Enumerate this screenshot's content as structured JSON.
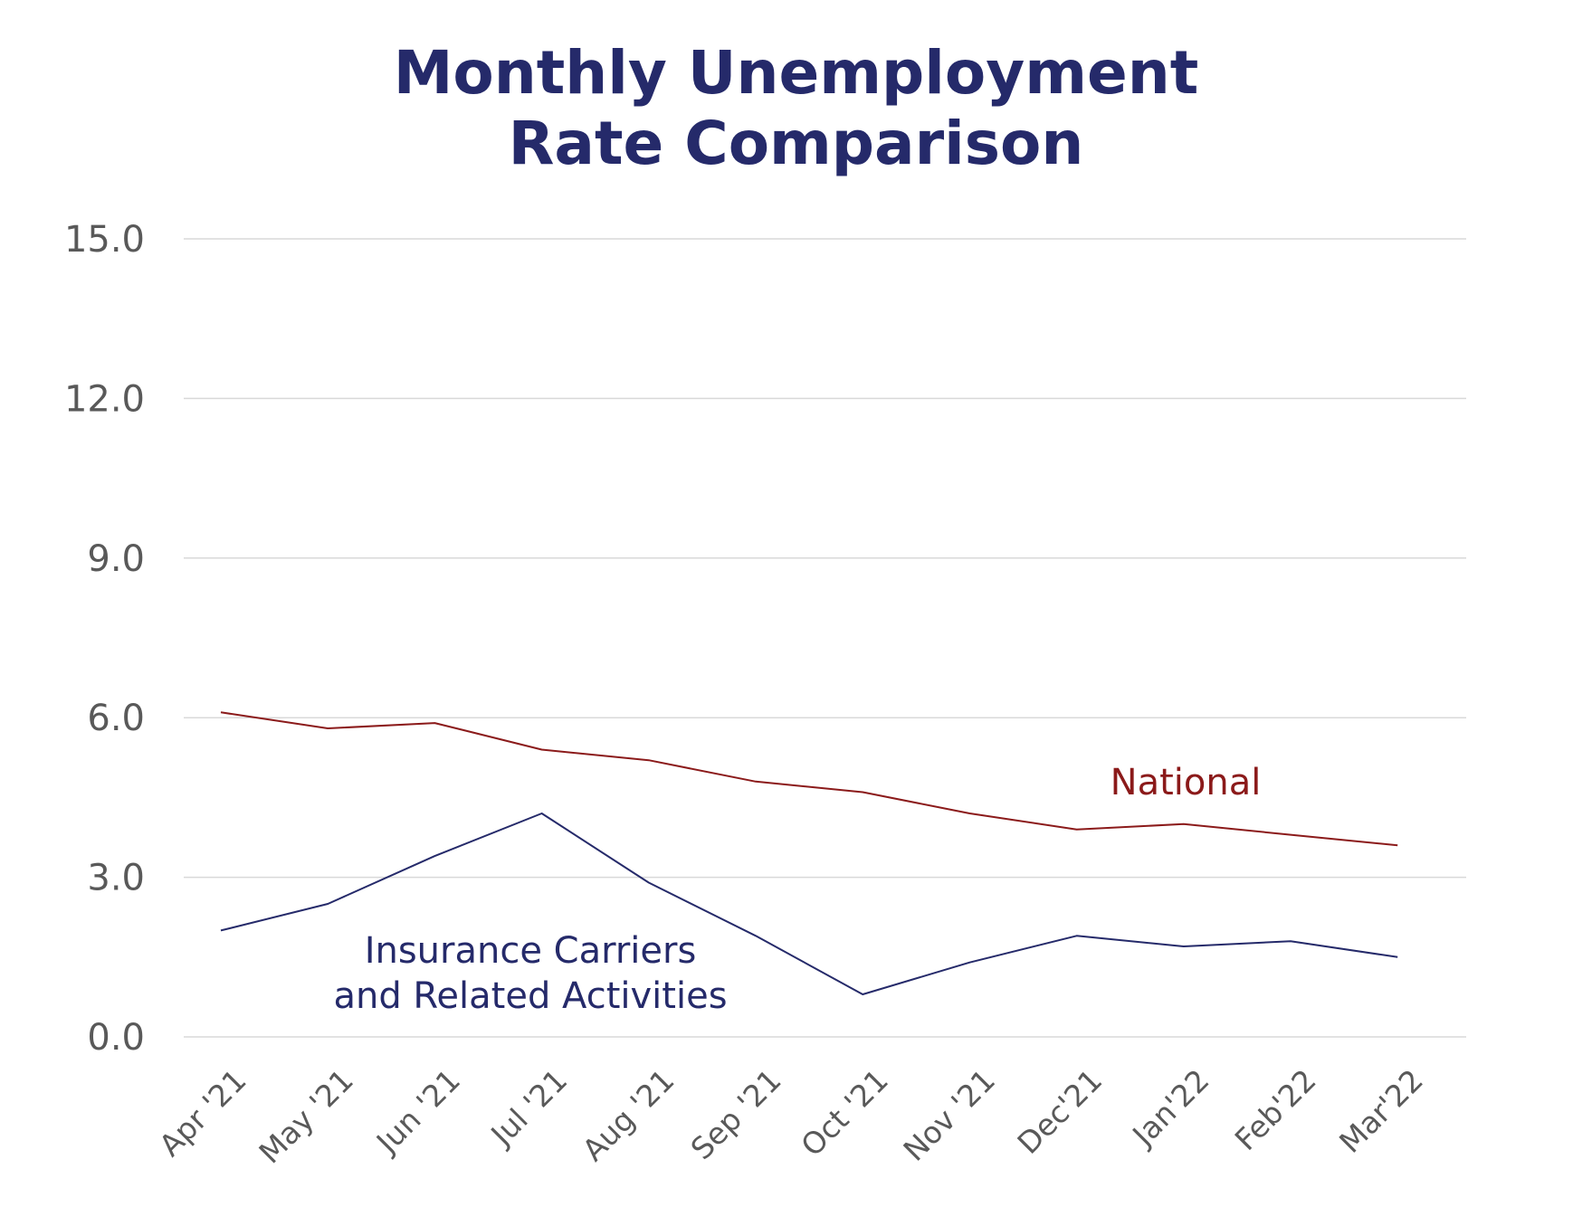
{
  "chart_data": {
    "type": "line",
    "title_lines": [
      "Monthly Unemployment",
      "Rate Comparison"
    ],
    "title": "Monthly Unemployment Rate Comparison",
    "xlabel": "",
    "ylabel": "",
    "categories": [
      "Apr '21",
      "May '21",
      "Jun '21",
      "Jul '21",
      "Aug '21",
      "Sep '21",
      "Oct '21",
      "Nov '21",
      "Dec'21",
      "Jan'22",
      "Feb'22",
      "Mar'22"
    ],
    "ylim": [
      0,
      15
    ],
    "yticks": [
      "0.0",
      "3.0",
      "6.0",
      "9.0",
      "12.0",
      "15.0"
    ],
    "grid": true,
    "series": [
      {
        "name": "National",
        "label_lines": [
          "National"
        ],
        "color": "#8b1a1a",
        "values": [
          6.1,
          5.8,
          5.9,
          5.4,
          5.2,
          4.8,
          4.6,
          4.2,
          3.9,
          4.0,
          3.8,
          3.6
        ]
      },
      {
        "name": "Insurance Carriers and Related Activities",
        "label_lines": [
          "Insurance Carriers",
          "and Related Activities"
        ],
        "color": "#252a6a",
        "values": [
          2.0,
          2.5,
          3.4,
          4.2,
          2.9,
          1.9,
          0.8,
          1.4,
          1.9,
          1.7,
          1.8,
          1.5
        ]
      }
    ]
  },
  "colors": {
    "title": "#252a6a",
    "axis_text": "#595959",
    "grid": "#d9d9d9"
  }
}
